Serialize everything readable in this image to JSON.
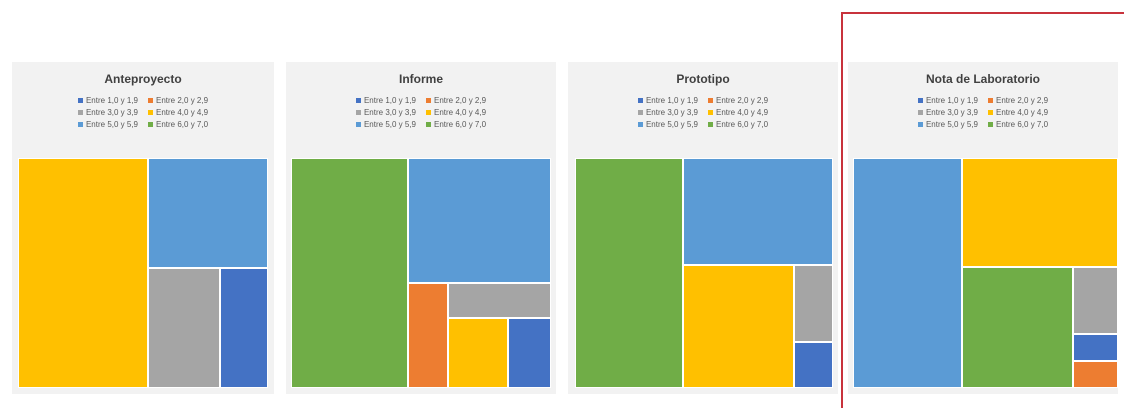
{
  "colors": {
    "c10_19": "#4472c4",
    "c20_29": "#ed7d31",
    "c30_39": "#a5a5a5",
    "c40_49": "#ffc000",
    "c50_59": "#5b9bd5",
    "c60_70": "#70ad47"
  },
  "chart_data": [
    {
      "type": "treemap",
      "title": "Anteproyecto",
      "legend": [
        {
          "label": "Entre 1,0 y 1,9",
          "color_key": "c10_19"
        },
        {
          "label": "Entre 2,0 y 2,9",
          "color_key": "c20_29"
        },
        {
          "label": "Entre 3,0 y 3,9",
          "color_key": "c30_39"
        },
        {
          "label": "Entre 4,0 y 4,9",
          "color_key": "c40_49"
        },
        {
          "label": "Entre 5,0 y 5,9",
          "color_key": "c50_59"
        },
        {
          "label": "Entre 6,0 y 7,0",
          "color_key": "c60_70"
        }
      ],
      "values": [
        {
          "category": "Entre 4,0 y 4,9",
          "value": 52,
          "color_key": "c40_49"
        },
        {
          "category": "Entre 5,0 y 5,9",
          "value": 23,
          "color_key": "c50_59"
        },
        {
          "category": "Entre 3,0 y 3,9",
          "value": 15,
          "color_key": "c30_39"
        },
        {
          "category": "Entre 1,0 y 1,9",
          "value": 10,
          "color_key": "c10_19"
        }
      ]
    },
    {
      "type": "treemap",
      "title": "Informe",
      "legend": [
        {
          "label": "Entre 1,0 y 1,9",
          "color_key": "c10_19"
        },
        {
          "label": "Entre 2,0 y 2,9",
          "color_key": "c20_29"
        },
        {
          "label": "Entre 3,0 y 3,9",
          "color_key": "c30_39"
        },
        {
          "label": "Entre 4,0 y 4,9",
          "color_key": "c40_49"
        },
        {
          "label": "Entre 5,0 y 5,9",
          "color_key": "c50_59"
        },
        {
          "label": "Entre 6,0 y 7,0",
          "color_key": "c60_70"
        }
      ],
      "values": [
        {
          "category": "Entre 6,0 y 7,0",
          "value": 45,
          "color_key": "c60_70"
        },
        {
          "category": "Entre 5,0 y 5,9",
          "value": 30,
          "color_key": "c50_59"
        },
        {
          "category": "Entre 2,0 y 2,9",
          "value": 7,
          "color_key": "c20_29"
        },
        {
          "category": "Entre 3,0 y 3,9",
          "value": 6,
          "color_key": "c30_39"
        },
        {
          "category": "Entre 4,0 y 4,9",
          "value": 7,
          "color_key": "c40_49"
        },
        {
          "category": "Entre 1,0 y 1,9",
          "value": 5,
          "color_key": "c10_19"
        }
      ]
    },
    {
      "type": "treemap",
      "title": "Prototipo",
      "legend": [
        {
          "label": "Entre 1,0 y 1,9",
          "color_key": "c10_19"
        },
        {
          "label": "Entre 2,0 y 2,9",
          "color_key": "c20_29"
        },
        {
          "label": "Entre 3,0 y 3,9",
          "color_key": "c30_39"
        },
        {
          "label": "Entre 4,0 y 4,9",
          "color_key": "c40_49"
        },
        {
          "label": "Entre 5,0 y 5,9",
          "color_key": "c50_59"
        },
        {
          "label": "Entre 6,0 y 7,0",
          "color_key": "c60_70"
        }
      ],
      "values": [
        {
          "category": "Entre 6,0 y 7,0",
          "value": 42,
          "color_key": "c60_70"
        },
        {
          "category": "Entre 5,0 y 5,9",
          "value": 27,
          "color_key": "c50_59"
        },
        {
          "category": "Entre 4,0 y 4,9",
          "value": 23,
          "color_key": "c40_49"
        },
        {
          "category": "Entre 3,0 y 3,9",
          "value": 5,
          "color_key": "c30_39"
        },
        {
          "category": "Entre 1,0 y 1,9",
          "value": 3,
          "color_key": "c10_19"
        }
      ]
    },
    {
      "type": "treemap",
      "title": "Nota de Laboratorio",
      "legend": [
        {
          "label": "Entre 1,0 y 1,9",
          "color_key": "c10_19"
        },
        {
          "label": "Entre 2,0 y 2,9",
          "color_key": "c20_29"
        },
        {
          "label": "Entre 3,0 y 3,9",
          "color_key": "c30_39"
        },
        {
          "label": "Entre 4,0 y 4,9",
          "color_key": "c40_49"
        },
        {
          "label": "Entre 5,0 y 5,9",
          "color_key": "c50_59"
        },
        {
          "label": "Entre 6,0 y 7,0",
          "color_key": "c60_70"
        }
      ],
      "values": [
        {
          "category": "Entre 5,0 y 5,9",
          "value": 41,
          "color_key": "c50_59"
        },
        {
          "category": "Entre 4,0 y 4,9",
          "value": 28,
          "color_key": "c40_49"
        },
        {
          "category": "Entre 6,0 y 7,0",
          "value": 22,
          "color_key": "c60_70"
        },
        {
          "category": "Entre 3,0 y 3,9",
          "value": 5,
          "color_key": "c30_39"
        },
        {
          "category": "Entre 1,0 y 1,9",
          "value": 2,
          "color_key": "c10_19"
        },
        {
          "category": "Entre 2,0 y 2,9",
          "value": 2,
          "color_key": "c20_29"
        }
      ]
    }
  ]
}
